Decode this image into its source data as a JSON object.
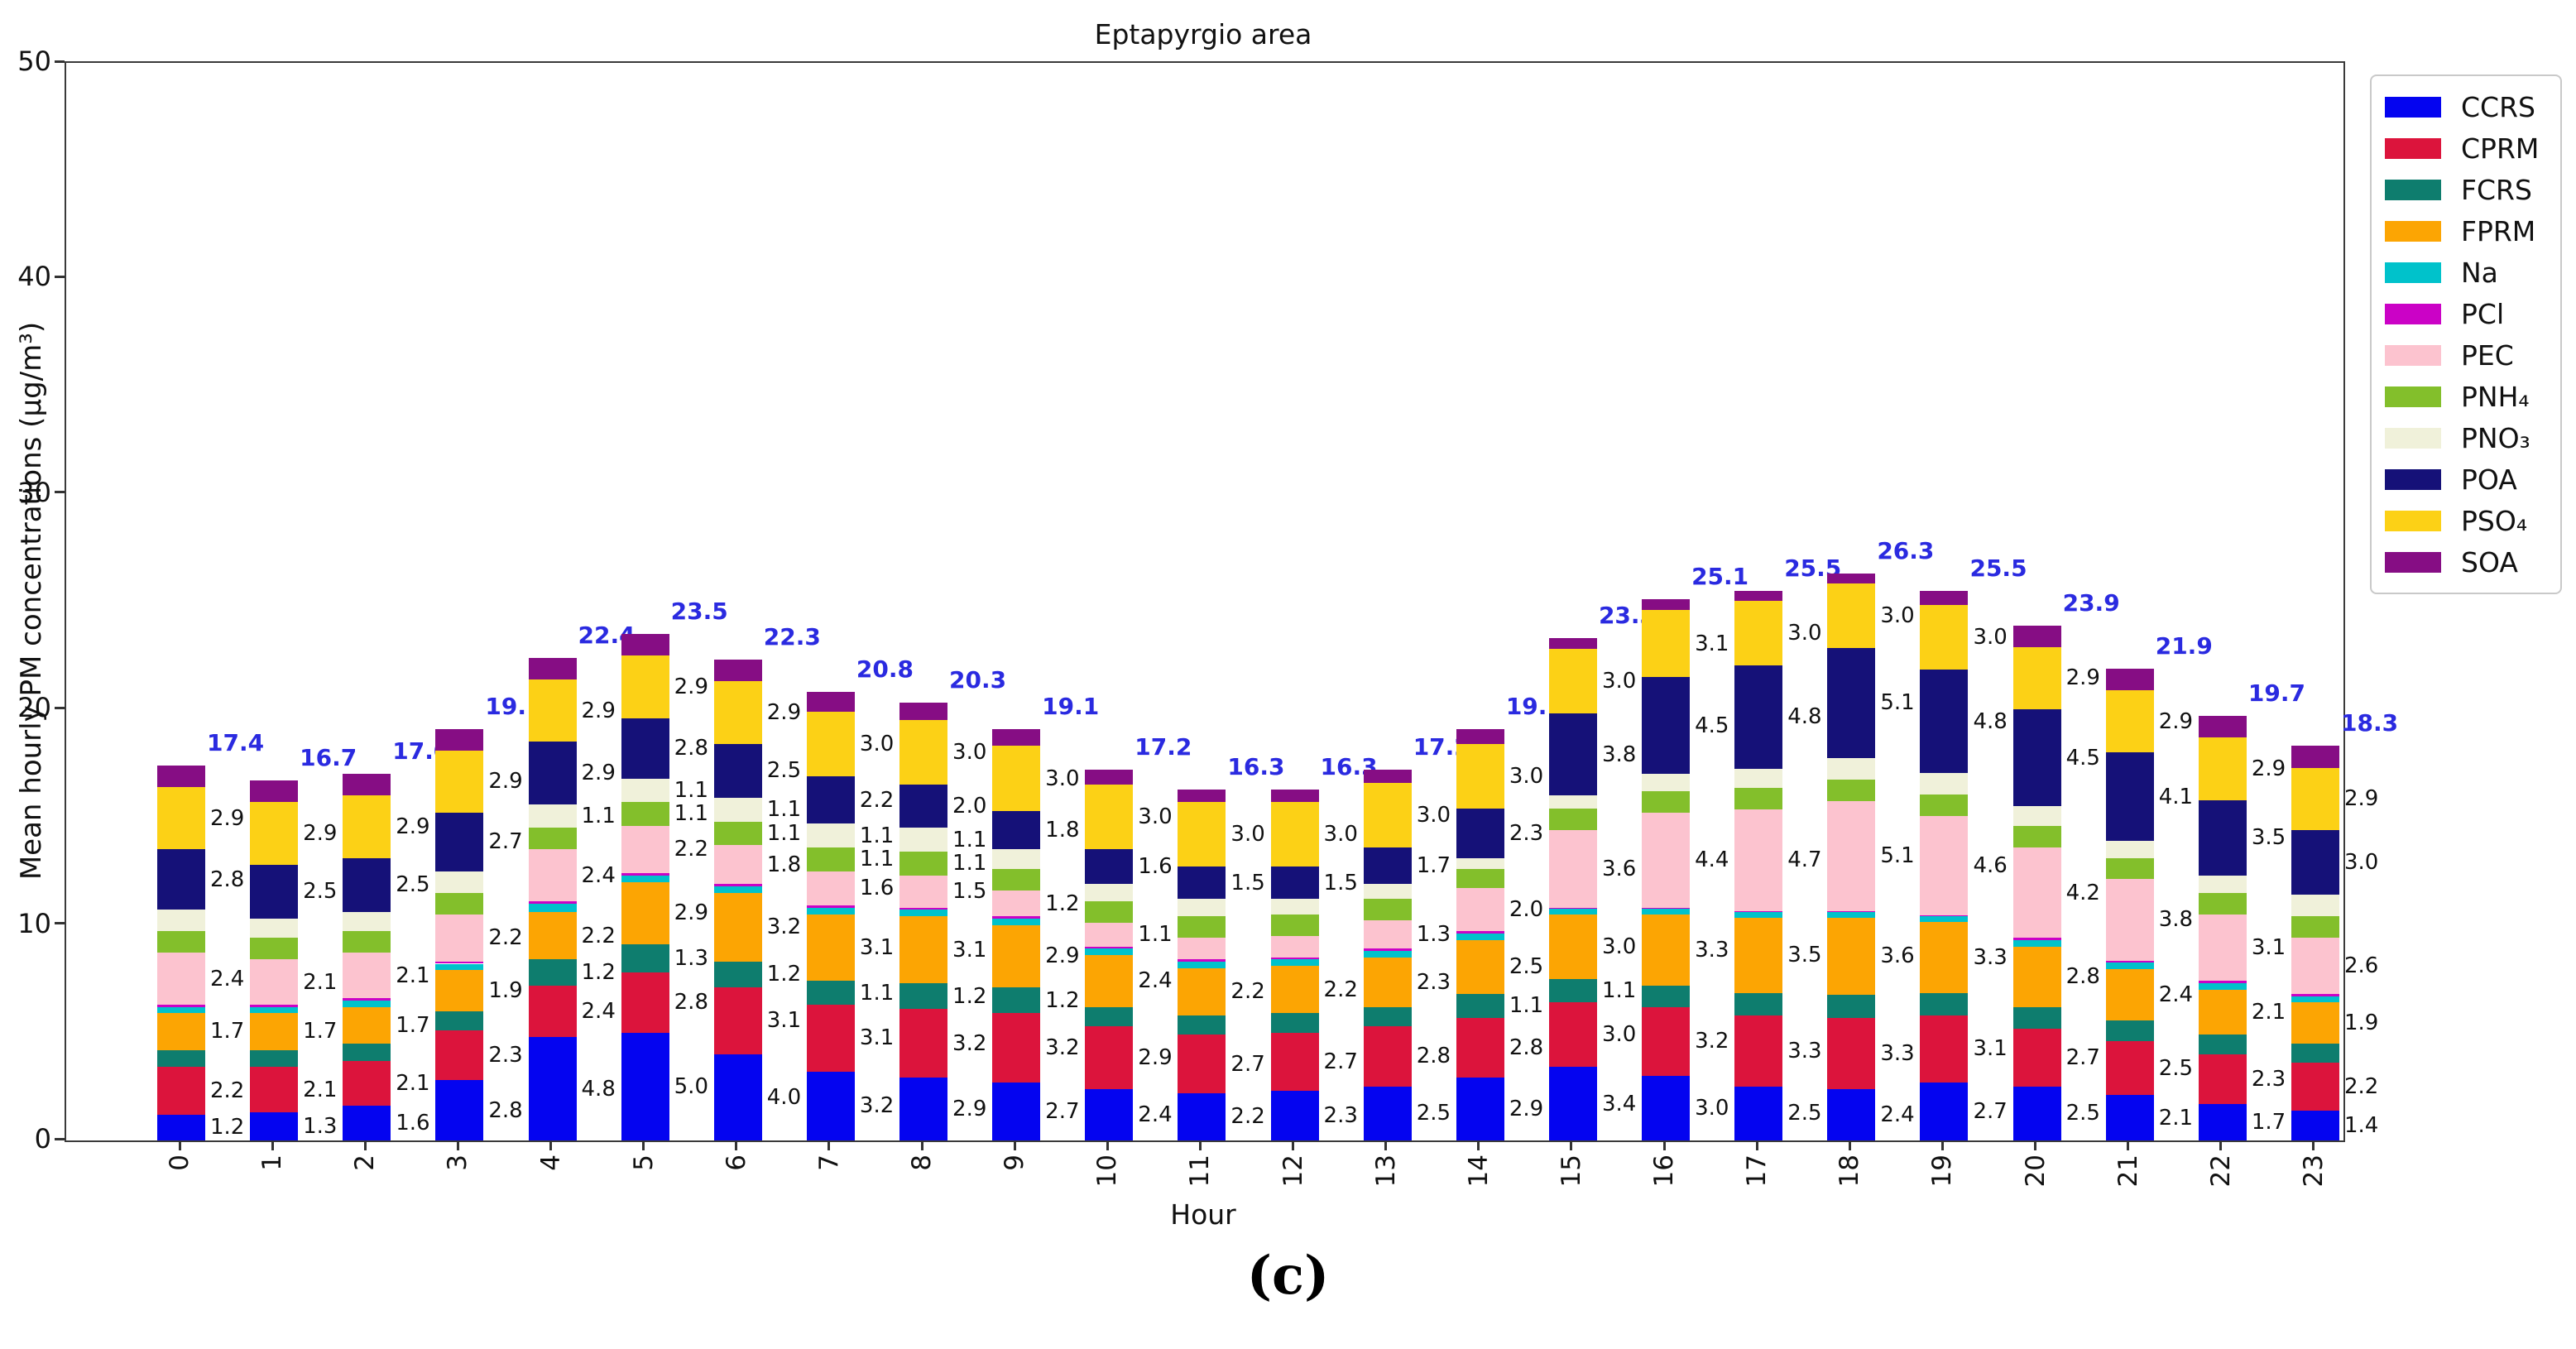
{
  "figure": {
    "caption": "(c)"
  },
  "chart_data": {
    "type": "bar",
    "stacked": true,
    "title": "Eptapyrgio area",
    "xlabel": "Hour",
    "ylabel": "Mean hourly PM concentrations (μg/m³)",
    "ylim": [
      0,
      50
    ],
    "yticks": [
      0,
      10,
      20,
      30,
      40,
      50
    ],
    "grid": false,
    "legend_position": "outside-upper-right",
    "label_threshold": 1.1,
    "label_color": "#111111",
    "total_color": "#2a2ae0",
    "categories": [
      "0",
      "1",
      "2",
      "3",
      "4",
      "5",
      "6",
      "7",
      "8",
      "9",
      "10",
      "11",
      "12",
      "13",
      "14",
      "15",
      "16",
      "17",
      "18",
      "19",
      "20",
      "21",
      "22",
      "23"
    ],
    "series": [
      {
        "name": "CCRS",
        "label": "CCRS",
        "color": "#0404f0",
        "values": [
          1.2,
          1.3,
          1.6,
          2.8,
          4.8,
          5.0,
          4.0,
          3.2,
          2.9,
          2.7,
          2.4,
          2.2,
          2.3,
          2.5,
          2.9,
          3.4,
          3.0,
          2.5,
          2.4,
          2.7,
          2.5,
          2.1,
          1.7,
          1.4
        ]
      },
      {
        "name": "CPRM",
        "label": "CPRM",
        "color": "#dc143c",
        "values": [
          2.2,
          2.1,
          2.1,
          2.3,
          2.4,
          2.8,
          3.1,
          3.1,
          3.2,
          3.2,
          2.9,
          2.7,
          2.7,
          2.8,
          2.8,
          3.0,
          3.2,
          3.3,
          3.3,
          3.1,
          2.7,
          2.5,
          2.3,
          2.2
        ]
      },
      {
        "name": "FCRS",
        "label": "FCRS",
        "color": "#0e7d6e",
        "values": [
          0.8,
          0.8,
          0.8,
          0.9,
          1.2,
          1.3,
          1.2,
          1.1,
          1.2,
          1.2,
          0.9,
          0.9,
          0.9,
          0.9,
          1.1,
          1.1,
          1.0,
          1.05,
          1.05,
          1.05,
          1.0,
          0.95,
          0.9,
          0.9
        ]
      },
      {
        "name": "FPRM",
        "label": "FPRM",
        "color": "#fca503",
        "values": [
          1.7,
          1.7,
          1.7,
          1.9,
          2.2,
          2.9,
          3.2,
          3.1,
          3.1,
          2.9,
          2.4,
          2.2,
          2.2,
          2.3,
          2.5,
          3.0,
          3.3,
          3.5,
          3.6,
          3.3,
          2.8,
          2.4,
          2.1,
          1.9
        ]
      },
      {
        "name": "Na",
        "label": "Na",
        "color": "#00c2cb",
        "values": [
          0.3,
          0.3,
          0.3,
          0.3,
          0.4,
          0.3,
          0.3,
          0.3,
          0.3,
          0.3,
          0.3,
          0.3,
          0.3,
          0.3,
          0.3,
          0.25,
          0.25,
          0.25,
          0.25,
          0.25,
          0.3,
          0.3,
          0.3,
          0.3
        ]
      },
      {
        "name": "PCl",
        "label": "PCl",
        "color": "#cb02c6",
        "values": [
          0.1,
          0.1,
          0.1,
          0.1,
          0.1,
          0.1,
          0.1,
          0.1,
          0.1,
          0.1,
          0.1,
          0.1,
          0.1,
          0.1,
          0.1,
          0.05,
          0.05,
          0.05,
          0.05,
          0.05,
          0.1,
          0.1,
          0.1,
          0.1
        ]
      },
      {
        "name": "PEC",
        "label": "PEC",
        "color": "#fcc3cf",
        "values": [
          2.4,
          2.1,
          2.1,
          2.2,
          2.4,
          2.2,
          1.8,
          1.6,
          1.5,
          1.2,
          1.1,
          1.0,
          1.0,
          1.3,
          2.0,
          3.6,
          4.4,
          4.7,
          5.1,
          4.6,
          4.2,
          3.8,
          3.1,
          2.6
        ]
      },
      {
        "name": "PNH4",
        "label": "PNH₄",
        "color": "#83bf2b",
        "values": [
          1.0,
          1.0,
          1.0,
          1.0,
          1.0,
          1.1,
          1.1,
          1.1,
          1.1,
          1.0,
          1.0,
          1.0,
          1.0,
          1.0,
          0.9,
          1.0,
          1.0,
          1.0,
          1.0,
          1.0,
          1.0,
          0.95,
          1.0,
          1.0
        ]
      },
      {
        "name": "PNO3",
        "label": "PNO₃",
        "color": "#f0f1da",
        "values": [
          1.0,
          0.9,
          0.9,
          1.0,
          1.1,
          1.1,
          1.1,
          1.1,
          1.1,
          0.9,
          0.8,
          0.8,
          0.7,
          0.7,
          0.5,
          0.6,
          0.8,
          0.9,
          1.0,
          1.0,
          0.9,
          0.8,
          0.8,
          1.0
        ]
      },
      {
        "name": "POA",
        "label": "POA",
        "color": "#151178",
        "values": [
          2.8,
          2.5,
          2.5,
          2.7,
          2.9,
          2.8,
          2.5,
          2.2,
          2.0,
          1.8,
          1.6,
          1.5,
          1.5,
          1.7,
          2.3,
          3.8,
          4.5,
          4.8,
          5.1,
          4.8,
          4.5,
          4.1,
          3.5,
          3.0
        ]
      },
      {
        "name": "PSO4",
        "label": "PSO₄",
        "color": "#fcd116",
        "values": [
          2.9,
          2.9,
          2.9,
          2.9,
          2.9,
          2.9,
          2.9,
          3.0,
          3.0,
          3.0,
          3.0,
          3.0,
          3.0,
          3.0,
          3.0,
          3.0,
          3.1,
          3.0,
          3.0,
          3.0,
          2.9,
          2.9,
          2.9,
          2.9
        ]
      },
      {
        "name": "SOA",
        "label": "SOA",
        "color": "#860d84",
        "values": [
          1.0,
          1.0,
          1.0,
          1.0,
          1.0,
          1.0,
          1.0,
          0.9,
          0.8,
          0.8,
          0.7,
          0.6,
          0.6,
          0.6,
          0.7,
          0.5,
          0.5,
          0.45,
          0.45,
          0.65,
          1.0,
          1.0,
          1.0,
          1.0
        ]
      }
    ],
    "totals": [
      17.4,
      16.7,
      17.0,
      19.1,
      22.4,
      23.5,
      22.3,
      20.8,
      20.3,
      19.1,
      17.2,
      16.3,
      16.3,
      17.2,
      19.1,
      23.3,
      25.1,
      25.5,
      26.3,
      25.5,
      23.9,
      21.9,
      19.7,
      18.3
    ]
  }
}
